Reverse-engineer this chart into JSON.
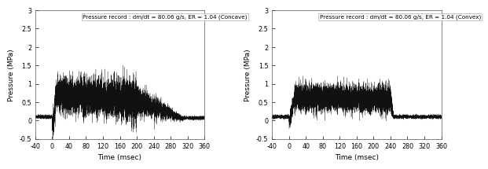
{
  "title_left": "Pressure record : dm/dt = 80.06 g/s, ER = 1.04 (Concave)",
  "title_right": "Pressure record : dm/dt = 80.06 g/s, ER = 1.04 (Convex)",
  "xlabel": "Time (msec)",
  "ylabel": "Pressure (MPa)",
  "xlim": [
    -40,
    360
  ],
  "ylim": [
    -0.5,
    3.0
  ],
  "xticks": [
    -40,
    0,
    40,
    80,
    120,
    160,
    200,
    240,
    280,
    320,
    360
  ],
  "yticks": [
    -0.5,
    0.0,
    0.5,
    1.0,
    1.5,
    2.0,
    2.5,
    3.0
  ],
  "background_color": "#ffffff",
  "line_color": "#111111",
  "pre_noise_mean": 0.1,
  "pre_noise_std": 0.02,
  "seed": 42
}
